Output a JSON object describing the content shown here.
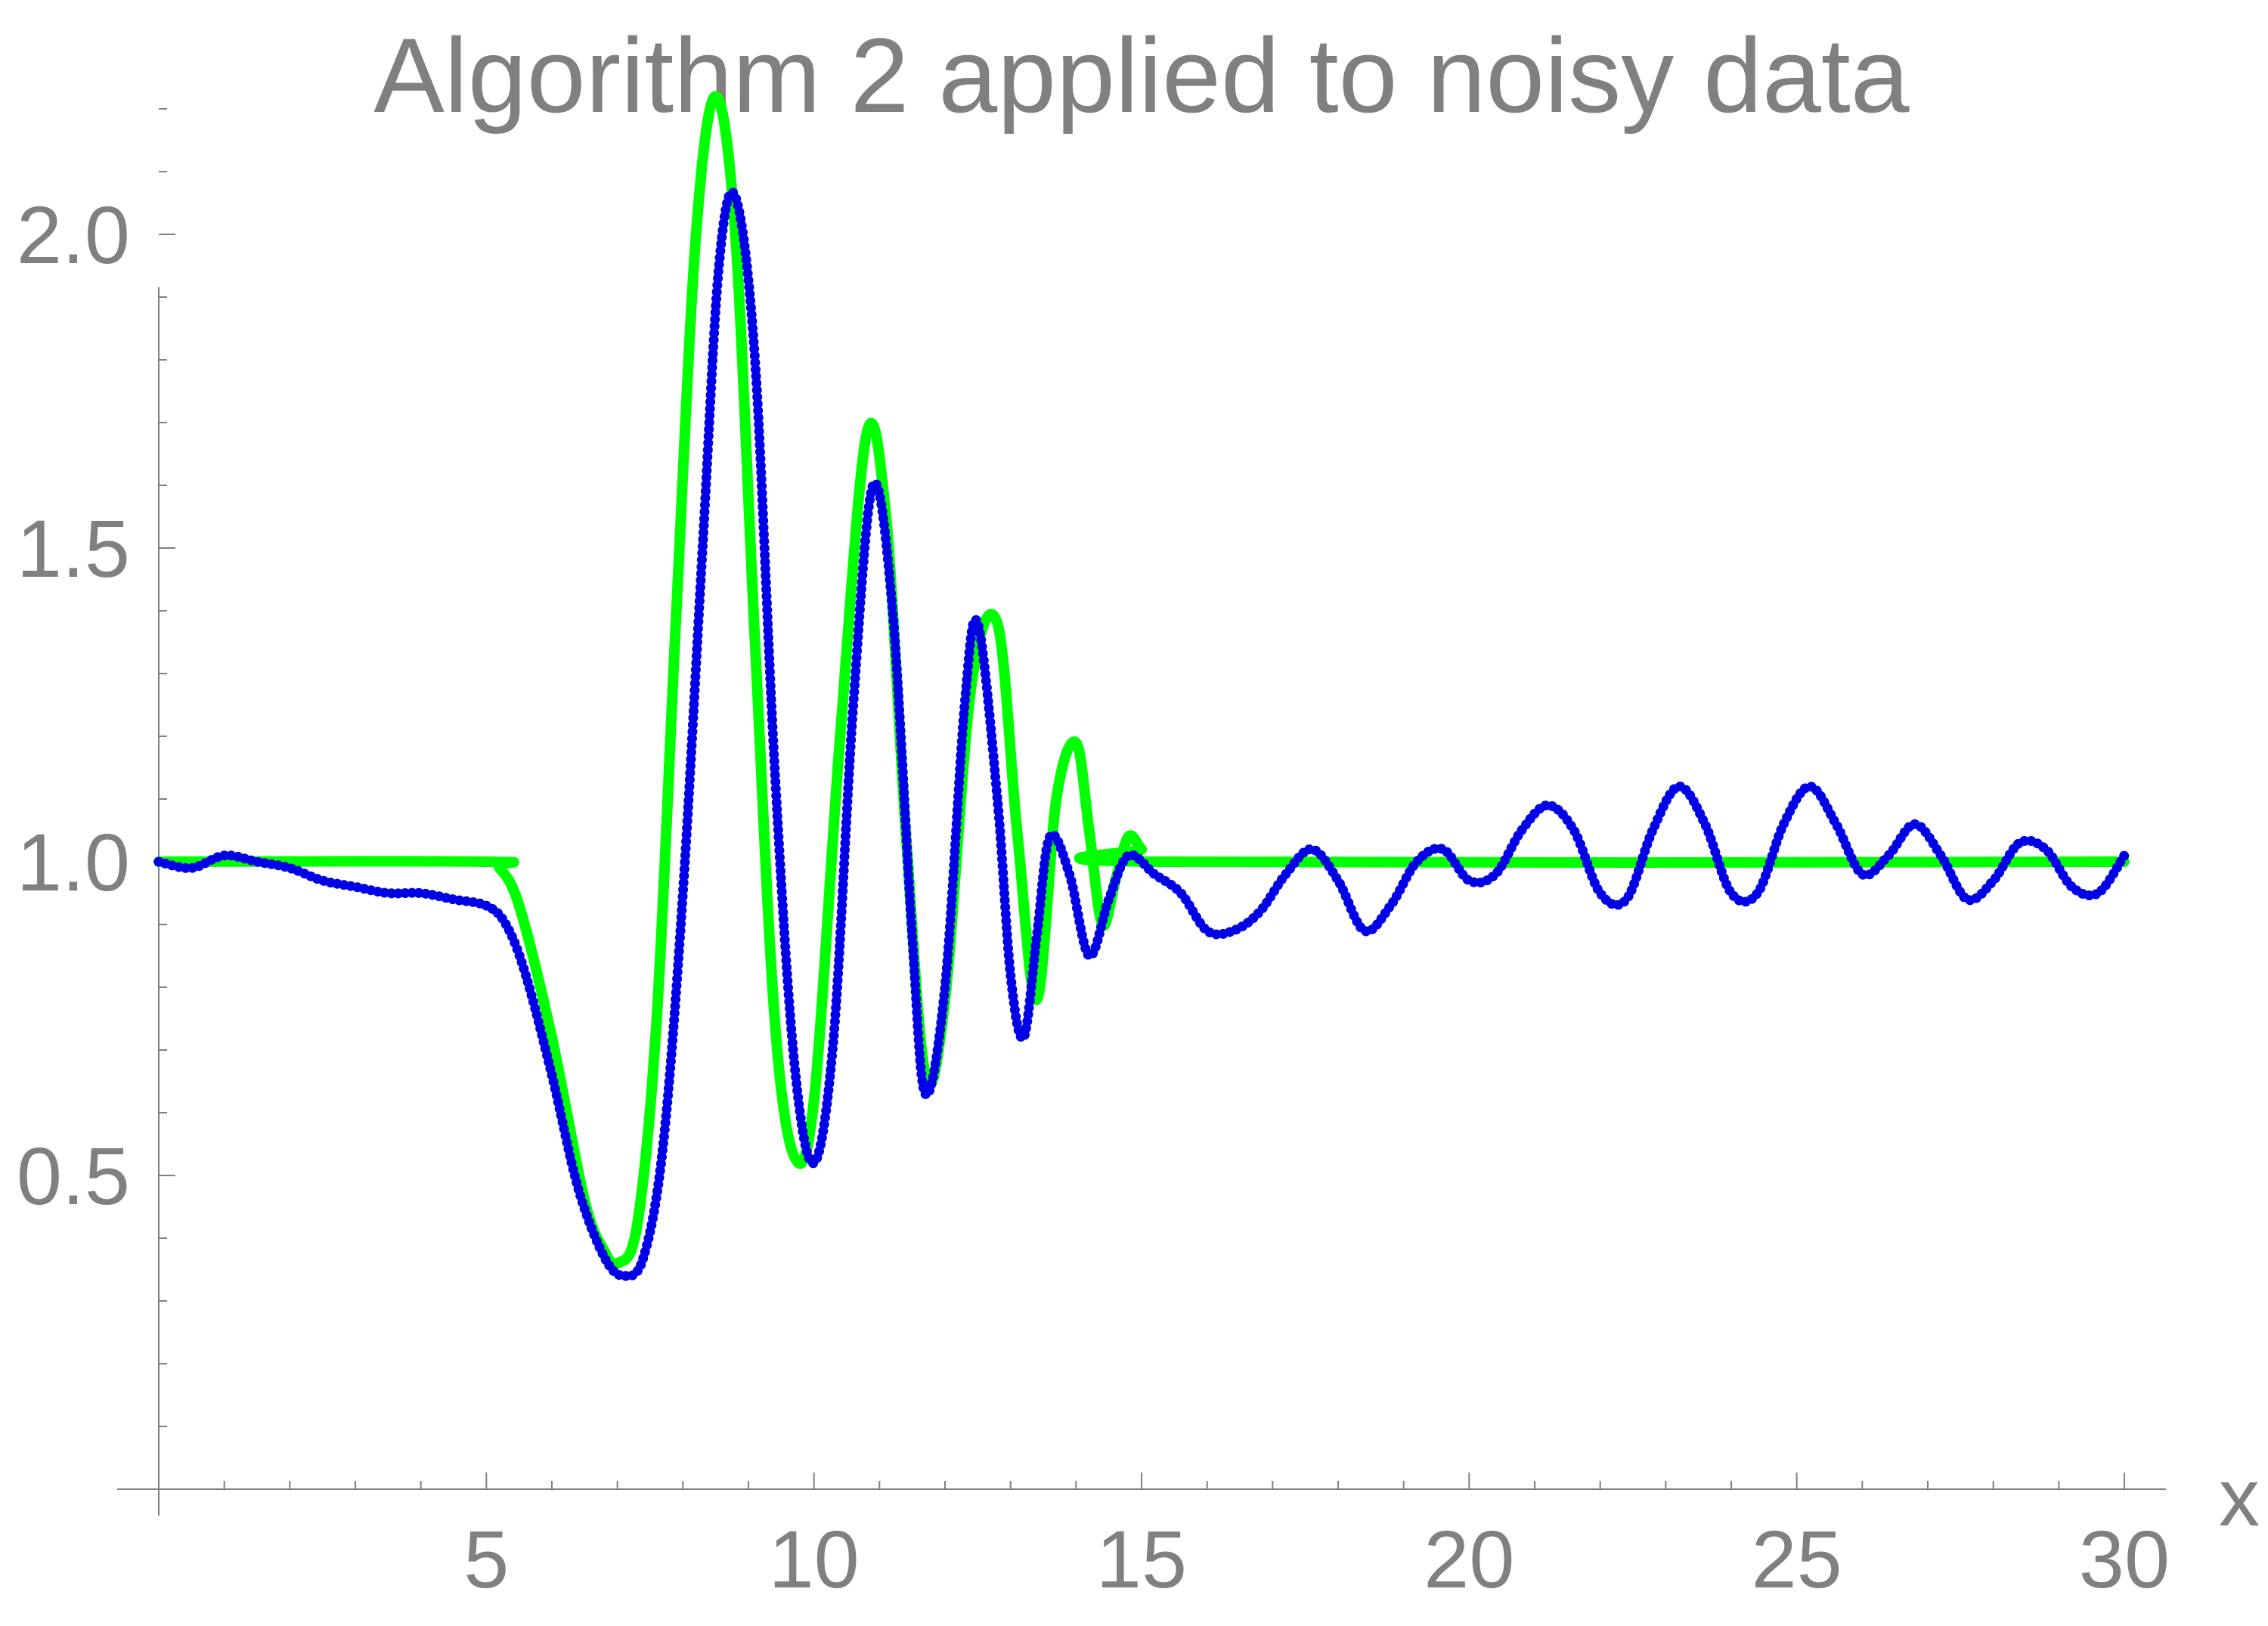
{
  "chart_data": {
    "type": "line",
    "title": "Algorithm 2 applied to noisy data",
    "xlabel": "x",
    "ylabel": "",
    "xlim": [
      0,
      30
    ],
    "ylim": [
      0,
      2.3
    ],
    "x_ticks": [
      5,
      10,
      15,
      20,
      25,
      30
    ],
    "x_tick_labels": [
      "5",
      "10",
      "15",
      "20",
      "25",
      "30"
    ],
    "y_ticks": [
      0.5,
      1.0,
      1.5,
      2.0
    ],
    "y_tick_labels": [
      "0.5",
      "1.0",
      "1.5",
      "2.0"
    ],
    "grid": false,
    "legend": "none",
    "colors": {
      "text": "#808080",
      "axis": "#808080",
      "exact": "#00ff00",
      "reconstructed": "#0000e6"
    },
    "series": [
      {
        "style": "solid",
        "color": "#00ff00",
        "x": [
          0,
          5.0,
          5.2,
          5.5,
          6.0,
          6.5,
          6.8,
          7.0,
          7.3,
          7.6,
          7.9,
          8.2,
          8.5,
          8.8,
          9.1,
          9.4,
          9.7,
          10.0,
          10.4,
          10.8,
          11.1,
          11.4,
          11.7,
          12.0,
          12.4,
          12.8,
          13.1,
          13.4,
          13.7,
          14.0,
          14.2,
          14.4,
          14.6,
          14.8,
          15.0,
          15.2,
          30
        ],
        "y": [
          1.0,
          1.0,
          0.99,
          0.93,
          0.72,
          0.46,
          0.38,
          0.36,
          0.42,
          0.75,
          1.4,
          2.0,
          2.22,
          2.0,
          1.35,
          0.75,
          0.53,
          0.62,
          1.2,
          1.68,
          1.55,
          1.05,
          0.66,
          0.78,
          1.28,
          1.38,
          1.05,
          0.78,
          1.1,
          1.19,
          1.05,
          0.9,
          0.97,
          1.04,
          1.02,
          1.0,
          1.0
        ]
      },
      {
        "style": "dotted",
        "color": "#0000e6",
        "x": [
          0,
          0.5,
          1.0,
          1.5,
          2.0,
          2.5,
          3.0,
          3.5,
          4.0,
          4.5,
          5.0,
          5.3,
          5.6,
          6.0,
          6.4,
          6.8,
          7.1,
          7.4,
          7.7,
          8.0,
          8.3,
          8.55,
          8.8,
          9.1,
          9.4,
          9.7,
          10.0,
          10.3,
          10.6,
          10.9,
          11.2,
          11.5,
          11.7,
          12.0,
          12.3,
          12.5,
          12.8,
          13.0,
          13.2,
          13.4,
          13.6,
          13.9,
          14.2,
          14.5,
          14.8,
          15.2,
          15.6,
          16.0,
          16.4,
          16.8,
          17.2,
          17.6,
          18.0,
          18.4,
          18.8,
          19.2,
          19.6,
          20.0,
          20.4,
          20.8,
          21.2,
          21.6,
          22.0,
          22.4,
          22.8,
          23.2,
          23.6,
          24.0,
          24.4,
          24.8,
          25.2,
          25.6,
          26.0,
          26.4,
          26.8,
          27.2,
          27.6,
          28.0,
          28.4,
          28.8,
          29.2,
          29.6,
          30.0
        ],
        "y": [
          1.0,
          0.99,
          1.01,
          1.0,
          0.99,
          0.97,
          0.96,
          0.95,
          0.95,
          0.94,
          0.93,
          0.9,
          0.82,
          0.66,
          0.48,
          0.37,
          0.34,
          0.37,
          0.55,
          0.95,
          1.5,
          1.95,
          2.06,
          1.8,
          1.15,
          0.68,
          0.52,
          0.72,
          1.25,
          1.6,
          1.4,
          0.88,
          0.63,
          0.8,
          1.25,
          1.38,
          1.1,
          0.82,
          0.72,
          0.88,
          1.04,
          0.98,
          0.85,
          0.94,
          1.01,
          0.98,
          0.95,
          0.89,
          0.89,
          0.92,
          0.98,
          1.02,
          0.97,
          0.89,
          0.93,
          1.0,
          1.02,
          0.97,
          0.98,
          1.05,
          1.09,
          1.05,
          0.95,
          0.94,
          1.05,
          1.12,
          1.06,
          0.95,
          0.95,
          1.06,
          1.12,
          1.06,
          0.98,
          1.01,
          1.06,
          1.01,
          0.94,
          0.97,
          1.03,
          1.02,
          0.96,
          0.95,
          1.01
        ]
      }
    ]
  }
}
